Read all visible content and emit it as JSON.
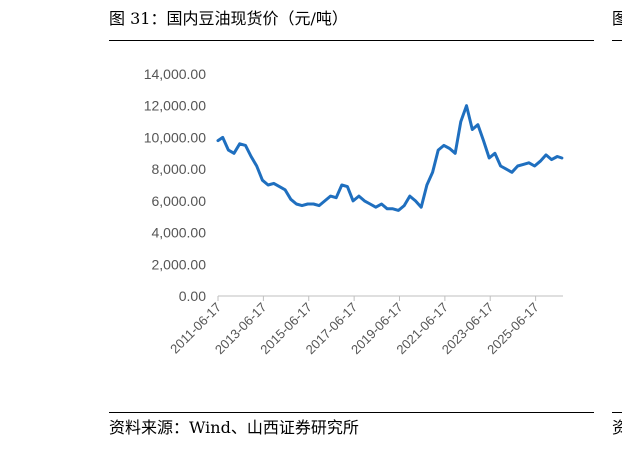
{
  "figure": {
    "title": "图 31：国内豆油现货价（元/吨）",
    "source": "资料来源：Wind、山西证券研究所"
  },
  "neighbor": {
    "title_fragment": "图",
    "source_fragment": "资"
  },
  "chart_data": {
    "type": "line",
    "title": "",
    "xlabel": "",
    "ylabel": "",
    "ylim": [
      0,
      14000
    ],
    "xlim": [
      "2011-06-17",
      "2026-09-01"
    ],
    "grid": false,
    "legend": "none",
    "colors": {
      "line": "#1f6fbf",
      "axis": "#bfbfbf",
      "tick_text": "#555555"
    },
    "y_ticks": [
      "0.00",
      "2,000.00",
      "4,000.00",
      "6,000.00",
      "8,000.00",
      "10,000.00",
      "12,000.00",
      "14,000.00"
    ],
    "x_ticks": [
      "2011-06-17",
      "2013-06-17",
      "2015-06-17",
      "2017-06-17",
      "2019-06-17",
      "2021-06-17",
      "2023-06-17",
      "2025-06-17"
    ],
    "series": [
      {
        "name": "",
        "x": [
          "2011-06-17",
          "2011-09-01",
          "2011-12-01",
          "2012-03-01",
          "2012-06-01",
          "2012-09-01",
          "2012-12-01",
          "2013-03-01",
          "2013-06-01",
          "2013-09-01",
          "2013-12-01",
          "2014-03-01",
          "2014-06-01",
          "2014-09-01",
          "2014-12-01",
          "2015-03-01",
          "2015-06-01",
          "2015-09-01",
          "2015-12-01",
          "2016-03-01",
          "2016-06-01",
          "2016-09-01",
          "2016-12-01",
          "2017-03-01",
          "2017-06-01",
          "2017-09-01",
          "2017-12-01",
          "2018-03-01",
          "2018-06-01",
          "2018-09-01",
          "2018-12-01",
          "2019-03-01",
          "2019-06-01",
          "2019-09-01",
          "2019-12-01",
          "2020-03-01",
          "2020-06-01",
          "2020-09-01",
          "2020-12-01",
          "2021-03-01",
          "2021-06-01",
          "2021-09-01",
          "2021-12-01",
          "2022-03-01",
          "2022-06-01",
          "2022-09-01",
          "2022-12-01",
          "2023-03-01",
          "2023-06-01",
          "2023-09-01",
          "2023-12-01",
          "2024-03-01",
          "2024-06-01",
          "2024-09-01",
          "2024-12-01",
          "2025-03-01",
          "2025-06-01",
          "2025-09-01",
          "2025-12-01",
          "2026-03-01",
          "2026-06-01",
          "2026-08-15"
        ],
        "values": [
          9800,
          10000,
          9200,
          9000,
          9600,
          9500,
          8800,
          8200,
          7300,
          7000,
          7100,
          6900,
          6700,
          6100,
          5800,
          5700,
          5800,
          5800,
          5700,
          6000,
          6300,
          6200,
          7000,
          6900,
          6000,
          6300,
          6000,
          5800,
          5600,
          5800,
          5500,
          5500,
          5400,
          5700,
          6300,
          6000,
          5600,
          7000,
          7800,
          9200,
          9500,
          9300,
          9000,
          11000,
          12000,
          10500,
          10800,
          9800,
          8700,
          9000,
          8200,
          8000,
          7800,
          8200,
          8300,
          8400,
          8200,
          8500,
          8900,
          8600,
          8800,
          8700
        ]
      }
    ]
  }
}
